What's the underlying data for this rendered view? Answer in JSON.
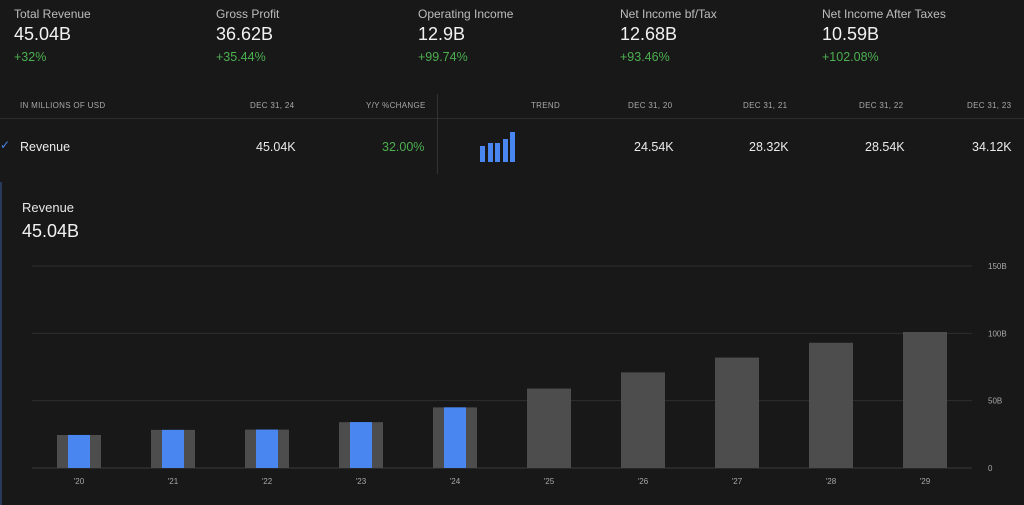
{
  "kpis": [
    {
      "label": "Total Revenue",
      "value": "45.04B",
      "change": "+32%"
    },
    {
      "label": "Gross Profit",
      "value": "36.62B",
      "change": "+35.44%"
    },
    {
      "label": "Operating Income",
      "value": "12.9B",
      "change": "+99.74%"
    },
    {
      "label": "Net Income bf/Tax",
      "value": "12.68B",
      "change": "+93.46%"
    },
    {
      "label": "Net Income After Taxes",
      "value": "10.59B",
      "change": "+102.08%"
    }
  ],
  "table": {
    "headers": {
      "units": "IN MILLIONS OF USD",
      "current": "DEC 31, 24",
      "yoy": "Y/Y %CHANGE",
      "trend": "TREND",
      "y2020": "DEC 31, 20",
      "y2021": "DEC 31, 21",
      "y2022": "DEC 31, 22",
      "y2023": "DEC 31, 23"
    },
    "row": {
      "name": "Revenue",
      "current": "45.04K",
      "yoy": "32.00%",
      "y2020": "24.54K",
      "y2021": "28.32K",
      "y2022": "28.54K",
      "y2023": "34.12K",
      "trend_values": [
        24.54,
        28.32,
        28.54,
        34.12,
        45.04
      ]
    },
    "accent": "#4a86f0",
    "positive": "#4caf50"
  },
  "panel": {
    "title": "Revenue",
    "value": "45.04B"
  },
  "chart_data": {
    "type": "bar",
    "title": "Revenue",
    "categories": [
      "'20",
      "'21",
      "'22",
      "'23",
      "'24",
      "'25",
      "'26",
      "'27",
      "'28",
      "'29"
    ],
    "series": [
      {
        "values": [
          24.54,
          28.32,
          28.54,
          34.12,
          45.04,
          null,
          null,
          null,
          null,
          null
        ],
        "color": "#4a86f0"
      },
      {
        "values": [
          24.5,
          28.3,
          28.5,
          34.0,
          45.0,
          59,
          71,
          82,
          93,
          101
        ],
        "color": "#4d4d4d"
      }
    ],
    "y_ticks": [
      {
        "value": 0,
        "label": "0"
      },
      {
        "value": 50,
        "label": "50B"
      },
      {
        "value": 100,
        "label": "100B"
      },
      {
        "value": 150,
        "label": "150B"
      }
    ],
    "ylim": [
      0,
      150
    ],
    "grid": true
  }
}
